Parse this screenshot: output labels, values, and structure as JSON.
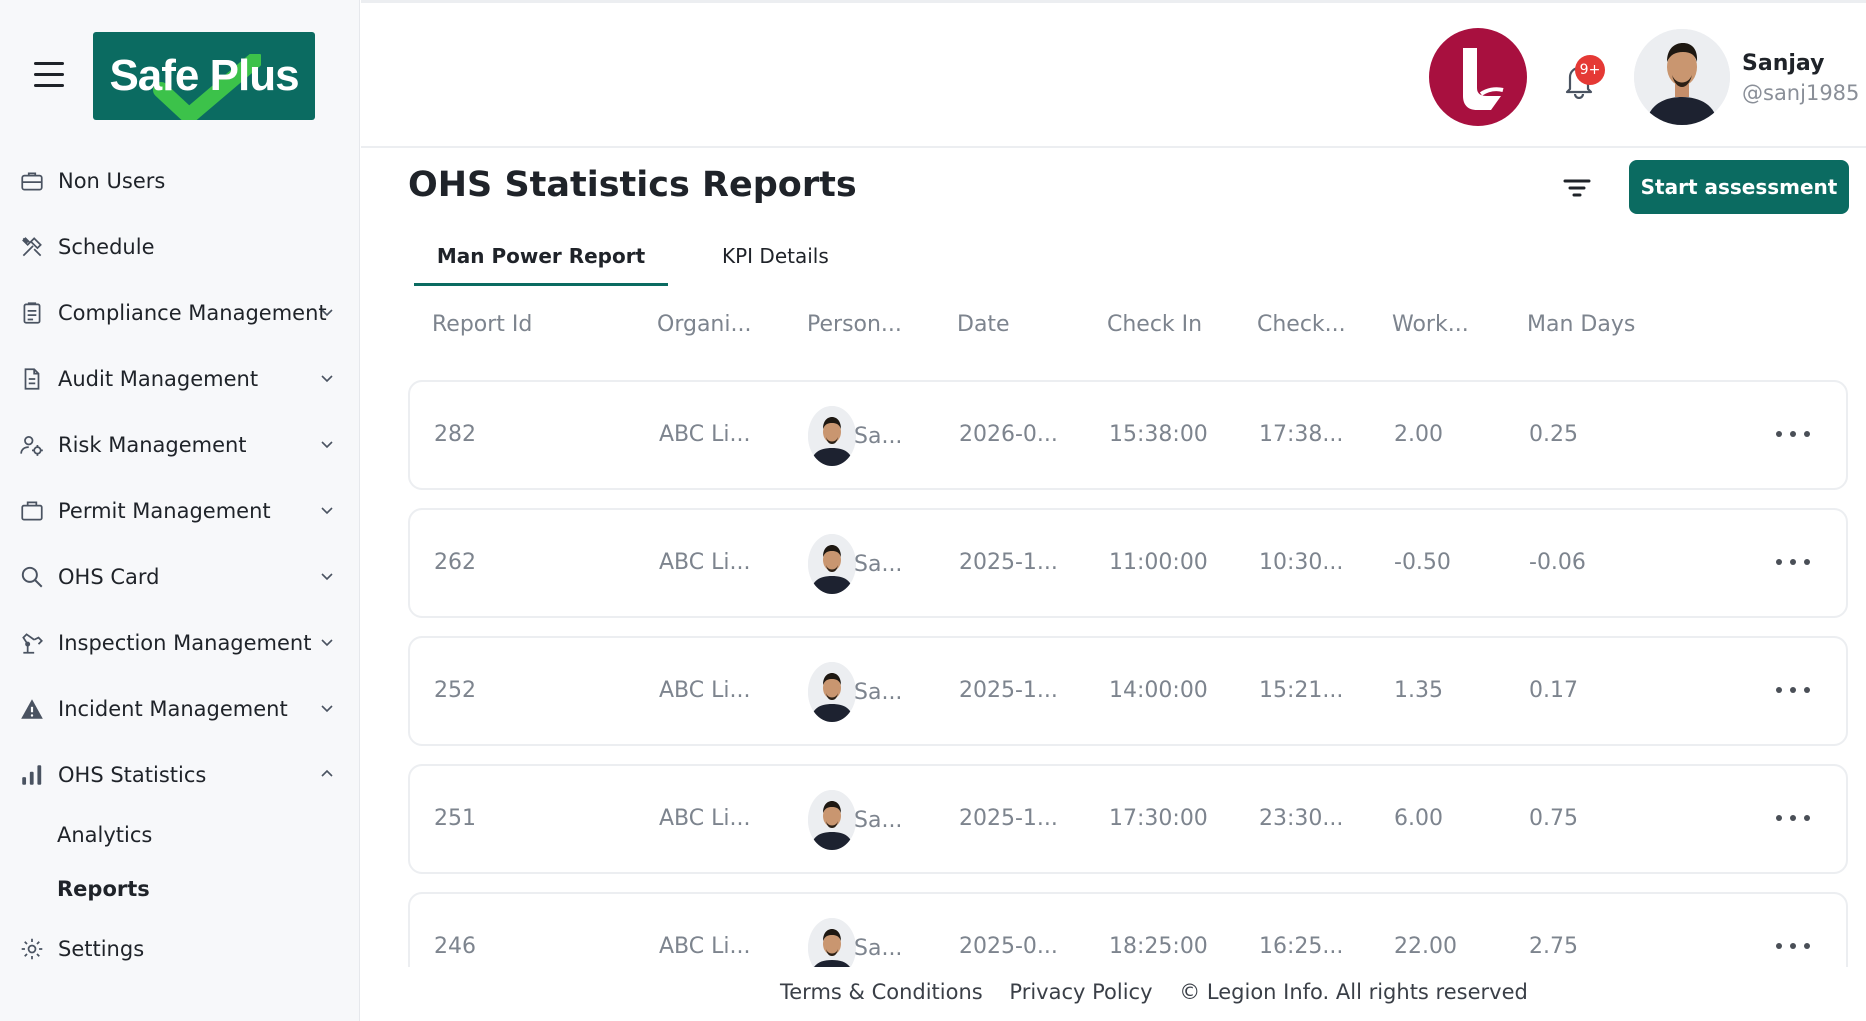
{
  "sidebar": {
    "logo_text": "Safe Plus",
    "items": [
      {
        "label": "Non Users",
        "icon": "briefcase-icon",
        "chevron": ""
      },
      {
        "label": "Schedule",
        "icon": "tools-icon",
        "chevron": ""
      },
      {
        "label": "Compliance Management",
        "icon": "clipboard-icon",
        "chevron": "down"
      },
      {
        "label": "Audit Management",
        "icon": "document-icon",
        "chevron": "down"
      },
      {
        "label": "Risk Management",
        "icon": "users-gear-icon",
        "chevron": "down"
      },
      {
        "label": "Permit Management",
        "icon": "folder-icon",
        "chevron": "down"
      },
      {
        "label": "OHS Card",
        "icon": "search-icon",
        "chevron": "down"
      },
      {
        "label": "Inspection Management",
        "icon": "robot-arm-icon",
        "chevron": "down"
      },
      {
        "label": "Incident Management",
        "icon": "warning-icon",
        "chevron": "down"
      },
      {
        "label": "OHS Statistics",
        "icon": "bar-chart-icon",
        "chevron": "up"
      }
    ],
    "sub_items": [
      {
        "label": "Analytics",
        "active": false
      },
      {
        "label": "Reports",
        "active": true
      }
    ],
    "settings_label": "Settings"
  },
  "header": {
    "notification_count": "9+",
    "user_name": "Sanjay",
    "user_handle": "@sanj1985"
  },
  "main": {
    "title": "OHS Statistics Reports",
    "start_button": "Start assessment",
    "tabs": [
      {
        "label": "Man Power Report",
        "active": true
      },
      {
        "label": "KPI Details",
        "active": false
      }
    ],
    "columns": [
      "Report Id",
      "Organi...",
      "Person...",
      "Date",
      "Check In",
      "Check...",
      "Work...",
      "Man Days"
    ],
    "rows": [
      {
        "id": "282",
        "org": "ABC Li...",
        "person": "Sa...",
        "date": "2026-0...",
        "check_in": "15:38:00",
        "check_out": "17:38...",
        "work": "2.00",
        "man_days": "0.25"
      },
      {
        "id": "262",
        "org": "ABC Li...",
        "person": "Sa...",
        "date": "2025-1...",
        "check_in": "11:00:00",
        "check_out": "10:30...",
        "work": "-0.50",
        "man_days": "-0.06"
      },
      {
        "id": "252",
        "org": "ABC Li...",
        "person": "Sa...",
        "date": "2025-1...",
        "check_in": "14:00:00",
        "check_out": "15:21...",
        "work": "1.35",
        "man_days": "0.17"
      },
      {
        "id": "251",
        "org": "ABC Li...",
        "person": "Sa...",
        "date": "2025-1...",
        "check_in": "17:30:00",
        "check_out": "23:30...",
        "work": "6.00",
        "man_days": "0.75"
      },
      {
        "id": "246",
        "org": "ABC Li...",
        "person": "Sa...",
        "date": "2025-0...",
        "check_in": "18:25:00",
        "check_out": "16:25...",
        "work": "22.00",
        "man_days": "2.75"
      }
    ]
  },
  "footer": {
    "terms": "Terms & Conditions",
    "privacy": "Privacy Policy",
    "copyright": "© Legion Info. All rights reserved"
  },
  "colors": {
    "brand": "#0b6b61",
    "badge": "#e53935",
    "company_badge": "#a8103f"
  }
}
